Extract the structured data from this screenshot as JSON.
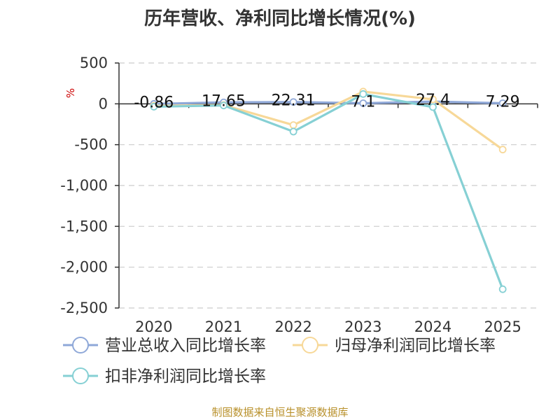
{
  "chart_data": {
    "type": "line",
    "title": "历年营收、净利同比增长情况(%)",
    "ylabel": "%",
    "categories": [
      "2020",
      "2021",
      "2022",
      "2023",
      "2024",
      "2025"
    ],
    "ylim": [
      -2500,
      500
    ],
    "yticks": [
      500,
      0,
      -500,
      -1000,
      -1500,
      -2000,
      -2500
    ],
    "ytick_labels": [
      "500",
      "0",
      "-500",
      "-1,000",
      "-1,500",
      "-2,000",
      "-2,500"
    ],
    "grid": true,
    "legend_position": "bottom",
    "series": [
      {
        "name": "营业总收入同比增长率",
        "color": "#8fa8d8",
        "values": [
          -0.86,
          17.65,
          22.31,
          7.1,
          27.4,
          7.29
        ]
      },
      {
        "name": "归母净利润同比增长率",
        "color": "#f7d898",
        "values": [
          -25,
          -15,
          -260,
          150,
          55,
          -560
        ]
      },
      {
        "name": "扣非净利润同比增长率",
        "color": "#86d0d4",
        "values": [
          -35,
          -20,
          -340,
          120,
          -40,
          -2270
        ]
      }
    ],
    "data_labels": [
      "-0.86",
      "17.65",
      "22.31",
      "7.1",
      "27.4",
      "7.29"
    ]
  },
  "footer": {
    "source": "制图数据来自恒生聚源数据库"
  },
  "colors": {
    "title": "#333333",
    "axis": "#333333",
    "grid": "#cccccc",
    "ylabel": "#cc0000",
    "source": "#b8902a"
  }
}
